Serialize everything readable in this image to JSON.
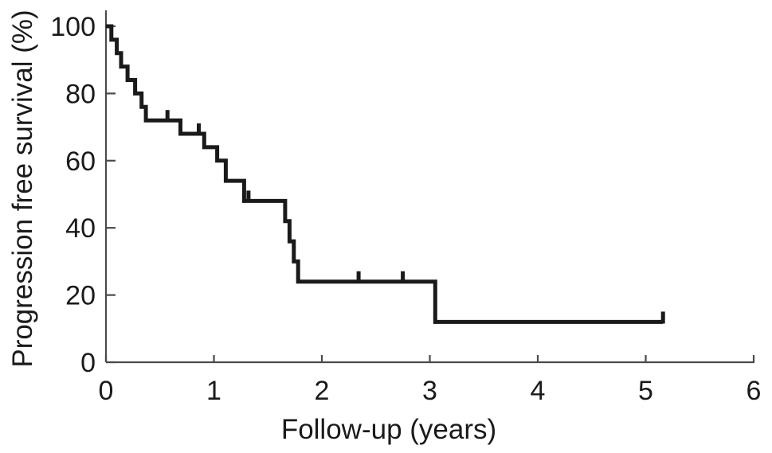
{
  "figure": {
    "background_color": "#ffffff",
    "curve_color": "#1a1a1a",
    "axis_color": "#4a4a4a",
    "text_color": "#1a1a1a"
  },
  "chart_data": {
    "type": "line",
    "subtype": "kaplan-meier-step",
    "xlabel": "Follow-up (years)",
    "ylabel": "Progression free survival (%)",
    "xlim": [
      0,
      6
    ],
    "ylim": [
      0,
      100
    ],
    "x_ticks": [
      0,
      1,
      2,
      3,
      4,
      5,
      6
    ],
    "y_ticks": [
      0,
      20,
      40,
      60,
      80,
      100
    ],
    "grid": false,
    "legend": false,
    "series": [
      {
        "name": "Progression free survival",
        "color": "#1a1a1a",
        "steps": [
          [
            0.0,
            100
          ],
          [
            0.05,
            96
          ],
          [
            0.1,
            92
          ],
          [
            0.14,
            88
          ],
          [
            0.2,
            84
          ],
          [
            0.27,
            80
          ],
          [
            0.33,
            76
          ],
          [
            0.37,
            72
          ],
          [
            0.69,
            68
          ],
          [
            0.91,
            64
          ],
          [
            1.03,
            60
          ],
          [
            1.11,
            54
          ],
          [
            1.28,
            48
          ],
          [
            1.66,
            42
          ],
          [
            1.7,
            36
          ],
          [
            1.74,
            30
          ],
          [
            1.78,
            24
          ],
          [
            3.05,
            12
          ]
        ],
        "end_time": 5.16,
        "censor_marks": [
          [
            0.57,
            72
          ],
          [
            0.86,
            68
          ],
          [
            1.32,
            48
          ],
          [
            2.34,
            24
          ],
          [
            2.75,
            24
          ],
          [
            5.16,
            12
          ]
        ]
      }
    ]
  }
}
